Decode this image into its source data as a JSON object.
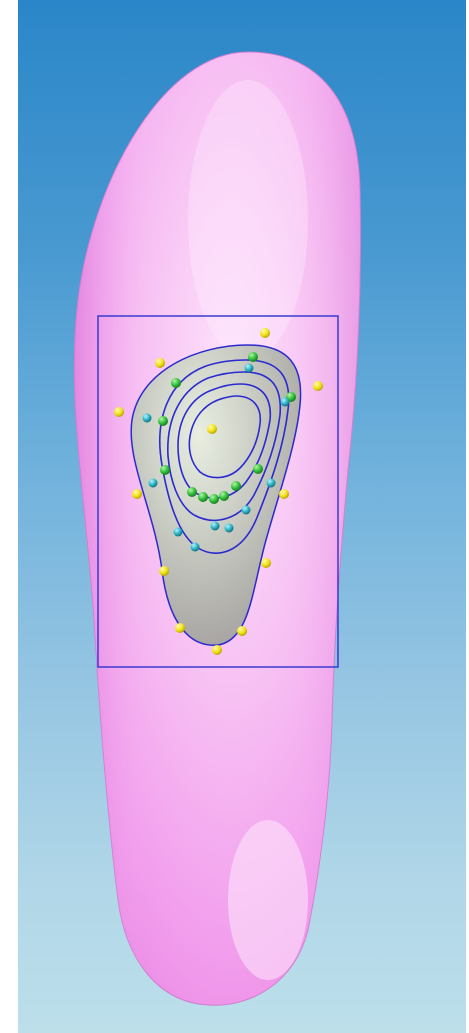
{
  "viewport": {
    "background_top": "#2a86c8",
    "background_bottom": "#bcdfea"
  },
  "insole": {
    "color": "#f8b6f4",
    "highlight": "#fde3fb"
  },
  "pad": {
    "fill": "#c9c6c2",
    "outline_color": "#2a2ad0",
    "contour_count": 4
  },
  "selection_box": {
    "color": "#3a3ad0"
  },
  "control_points": {
    "colors": {
      "yellow": "#f2e21a",
      "green": "#2fbf3a",
      "cyan": "#2bb3c6"
    }
  }
}
